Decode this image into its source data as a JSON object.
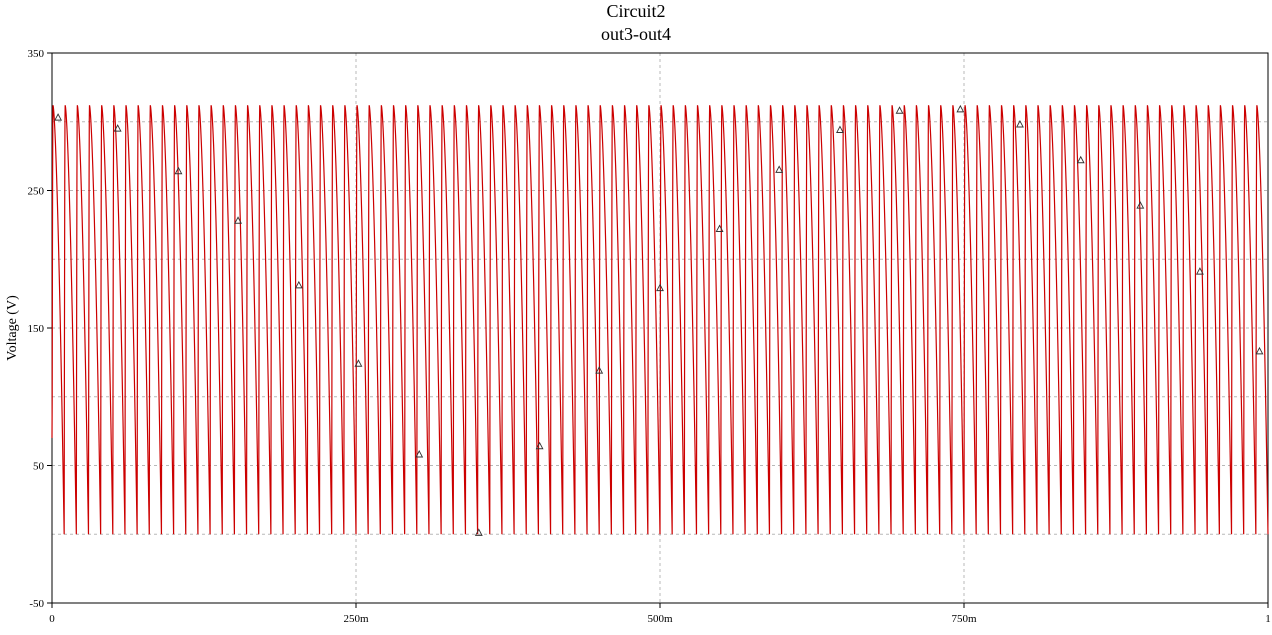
{
  "chart_data": {
    "type": "line",
    "title": "Circuit2",
    "subtitle": "out3-out4",
    "xlabel": "",
    "ylabel": "Voltage (V)",
    "xlim": [
      0,
      1
    ],
    "ylim": [
      -50,
      350
    ],
    "x_ticks": [
      {
        "value": 0,
        "label": "0"
      },
      {
        "value": 0.25,
        "label": "250m"
      },
      {
        "value": 0.5,
        "label": "500m"
      },
      {
        "value": 0.75,
        "label": "750m"
      },
      {
        "value": 1,
        "label": "1"
      }
    ],
    "y_ticks": [
      {
        "value": -50,
        "label": "-50"
      },
      {
        "value": 50,
        "label": "50"
      },
      {
        "value": 150,
        "label": "150"
      },
      {
        "value": 250,
        "label": "250"
      },
      {
        "value": 350,
        "label": "350"
      }
    ],
    "grid": true,
    "series": [
      {
        "name": "",
        "color": "#cc0000",
        "signal": {
          "shape": "rectified-sine-ripple",
          "cycles": 100,
          "peak": 312,
          "valley": 0,
          "start_value": 70
        },
        "markers": {
          "symbol": "triangle",
          "color": "#333333",
          "points": [
            [
              0.005,
              303
            ],
            [
              0.054,
              295
            ],
            [
              0.104,
              264
            ],
            [
              0.153,
              228
            ],
            [
              0.203,
              181
            ],
            [
              0.252,
              124
            ],
            [
              0.302,
              58
            ],
            [
              0.351,
              1
            ],
            [
              0.401,
              64
            ],
            [
              0.45,
              119
            ],
            [
              0.5,
              179
            ],
            [
              0.549,
              222
            ],
            [
              0.598,
              265
            ],
            [
              0.648,
              294
            ],
            [
              0.697,
              308
            ],
            [
              0.747,
              309
            ],
            [
              0.796,
              298
            ],
            [
              0.846,
              272
            ],
            [
              0.895,
              239
            ],
            [
              0.944,
              191
            ],
            [
              0.993,
              133
            ]
          ]
        }
      }
    ]
  }
}
